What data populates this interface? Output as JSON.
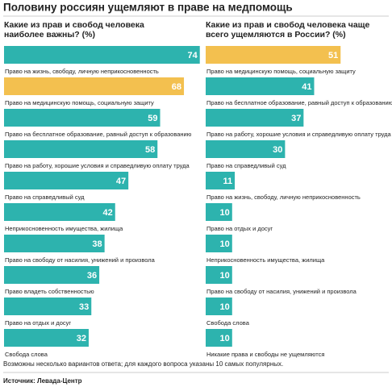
{
  "title": "Половину россиян ущемляют в праве на медпомощь",
  "note": "Возможны несколько вариантов ответа; для каждого вопроса указаны 10 самых популярных.",
  "source": "Источник: Левада-Центр",
  "chart_data": [
    {
      "type": "bar",
      "orientation": "horizontal",
      "title": [
        "Какие из прав и свобод человека",
        "наиболее важны? (%)"
      ],
      "categories": [
        "Право на жизнь, свободу, личную неприкосновенность",
        "Право на медицинскую помощь, социальную защиту",
        "Право на бесплатное образование, равный доступ к образованию",
        "Право на работу, хорошие условия и справедливую оплату труда",
        "Право на справедливый суд",
        "Неприкосновенность имущества, жилища",
        "Право на свободу от насилия, унижений и произвола",
        "Право владеть собственностью",
        "Право на отдых и досуг",
        "Свобода слова"
      ],
      "values": [
        74,
        68,
        59,
        58,
        47,
        42,
        38,
        36,
        33,
        32
      ],
      "colors": [
        "#2db3ae",
        "#f3c04f",
        "#2db3ae",
        "#2db3ae",
        "#2db3ae",
        "#2db3ae",
        "#2db3ae",
        "#2db3ae",
        "#2db3ae",
        "#2db3ae"
      ],
      "xlim": [
        0,
        75
      ]
    },
    {
      "type": "bar",
      "orientation": "horizontal",
      "title": [
        "Какие из прав и свобод человека чаще",
        "всего ущемляются в России? (%)"
      ],
      "categories": [
        "Право на медицинскую помощь, социальную защиту",
        "Право на бесплатное образование, равный доступ к образованию",
        "Право на работу, хорошие условия и справедливую оплату труда",
        "Право на справедливый суд",
        "Право на жизнь, свободу, личную неприкосновенность",
        "Право на отдых и досуг",
        "Неприкосновенность имущества, жилища",
        "Право на свободу от насилия, унижений и произвола",
        "Свобода слова",
        "Никакие права и свободы не ущемляются"
      ],
      "values": [
        51,
        41,
        37,
        30,
        11,
        10,
        10,
        10,
        10,
        10
      ],
      "colors": [
        "#f3c04f",
        "#2db3ae",
        "#2db3ae",
        "#2db3ae",
        "#2db3ae",
        "#2db3ae",
        "#2db3ae",
        "#2db3ae",
        "#2db3ae",
        "#2db3ae"
      ],
      "xlim": [
        0,
        75
      ]
    }
  ]
}
